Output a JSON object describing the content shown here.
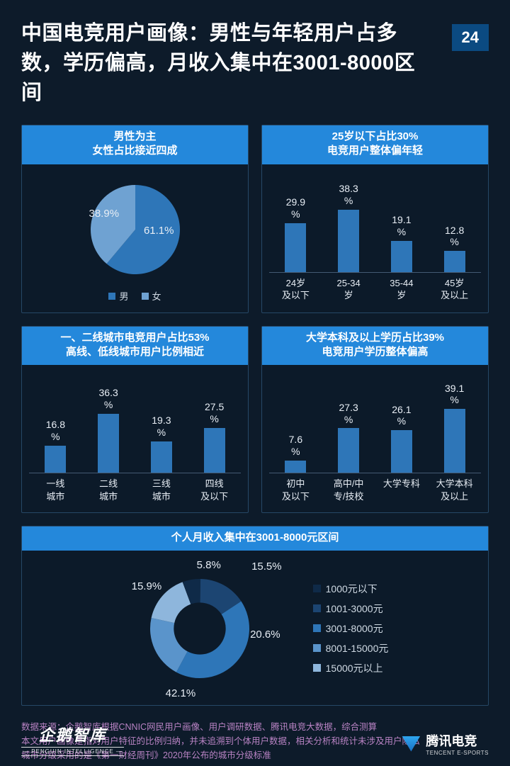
{
  "page_number": "24",
  "title": "中国电竞用户画像：男性与年轻用户占多数，学历偏高，月收入集中在3001-8000区间",
  "colors": {
    "bg": "#0d1b2a",
    "card_header": "#2488db",
    "card_border": "#264866",
    "text": "#e8eef5",
    "note": "#b983c4"
  },
  "gender_pie": {
    "title_l1": "男性为主",
    "title_l2": "女性占比接近四成",
    "type": "pie",
    "series": [
      {
        "label": "男",
        "value_label": "61.1%",
        "value": 61.1,
        "color": "#2e76b8"
      },
      {
        "label": "女",
        "value_label": "38.9%",
        "value": 38.9,
        "color": "#6fa2d2"
      }
    ],
    "legend_male": "男",
    "legend_female": "女"
  },
  "age_bars": {
    "title_l1": "25岁以下占比30%",
    "title_l2": "电竞用户整体偏年轻",
    "type": "bar",
    "bar_color": "#2e76b8",
    "ylim": [
      0,
      40
    ],
    "items": [
      {
        "value_label": "29.9%",
        "value": 29.9,
        "xlabel_l1": "24岁",
        "xlabel_l2": "及以下"
      },
      {
        "value_label": "38.3%",
        "value": 38.3,
        "xlabel_l1": "25-34",
        "xlabel_l2": "岁"
      },
      {
        "value_label": "19.1%",
        "value": 19.1,
        "xlabel_l1": "35-44",
        "xlabel_l2": "岁"
      },
      {
        "value_label": "12.8%",
        "value": 12.8,
        "xlabel_l1": "45岁",
        "xlabel_l2": "及以上"
      }
    ]
  },
  "city_bars": {
    "title_l1": "一、二线城市电竞用户占比53%",
    "title_l2": "高线、低线城市用户比例相近",
    "type": "bar",
    "bar_color": "#2e76b8",
    "ylim": [
      0,
      40
    ],
    "items": [
      {
        "value_label": "16.8%",
        "value": 16.8,
        "xlabel_l1": "一线",
        "xlabel_l2": "城市"
      },
      {
        "value_label": "36.3%",
        "value": 36.3,
        "xlabel_l1": "二线",
        "xlabel_l2": "城市"
      },
      {
        "value_label": "19.3%",
        "value": 19.3,
        "xlabel_l1": "三线",
        "xlabel_l2": "城市"
      },
      {
        "value_label": "27.5%",
        "value": 27.5,
        "xlabel_l1": "四线",
        "xlabel_l2": "及以下"
      }
    ]
  },
  "edu_bars": {
    "title_l1": "大学本科及以上学历占比39%",
    "title_l2": "电竞用户学历整体偏高",
    "type": "bar",
    "bar_color": "#2e76b8",
    "ylim": [
      0,
      40
    ],
    "items": [
      {
        "value_label": "7.6%",
        "value": 7.6,
        "xlabel_l1": "初中",
        "xlabel_l2": "及以下"
      },
      {
        "value_label": "27.3%",
        "value": 27.3,
        "xlabel_l1": "高中/中",
        "xlabel_l2": "专/技校"
      },
      {
        "value_label": "26.1%",
        "value": 26.1,
        "xlabel_l1": "大学专科",
        "xlabel_l2": ""
      },
      {
        "value_label": "39.1%",
        "value": 39.1,
        "xlabel_l1": "大学本科",
        "xlabel_l2": "及以上"
      }
    ]
  },
  "income_donut": {
    "title": "个人月收入集中在3001-8000元区间",
    "type": "donut",
    "bg_color": "#0d1b2a",
    "series": [
      {
        "label": "1000元以下",
        "value_label": "5.8%",
        "value": 5.8,
        "color": "#0f2a48"
      },
      {
        "label": "1001-3000元",
        "value_label": "15.5%",
        "value": 15.5,
        "color": "#1c4572"
      },
      {
        "label": "3001-8000元",
        "value_label": "42.1%",
        "value": 42.1,
        "color": "#2e76b8"
      },
      {
        "label": "8001-15000元",
        "value_label": "20.6%",
        "value": 20.6,
        "color": "#5a94cb"
      },
      {
        "label": "15000元以上",
        "value_label": "15.9%",
        "value": 15.9,
        "color": "#8eb6dc"
      }
    ]
  },
  "notes": {
    "l1": "数据来源：企鹅智库根据CNNIC网民用户画像、用户调研数据、腾讯电竞大数据，综合测算",
    "l2": "本文用户画像是指对用户特征的比例归纳，并未追溯到个体用户数据，相关分析和统计未涉及用户隐私",
    "l3": "城市分级采用的是《第一财经周刊》2020年公布的城市分级标准"
  },
  "brand_left": {
    "cn": "企鹅智库",
    "en": "— PENGUIN INTELLIGENCE —"
  },
  "brand_right": {
    "cn": "腾讯电竞",
    "en": "TENCENT E-SPORTS"
  }
}
